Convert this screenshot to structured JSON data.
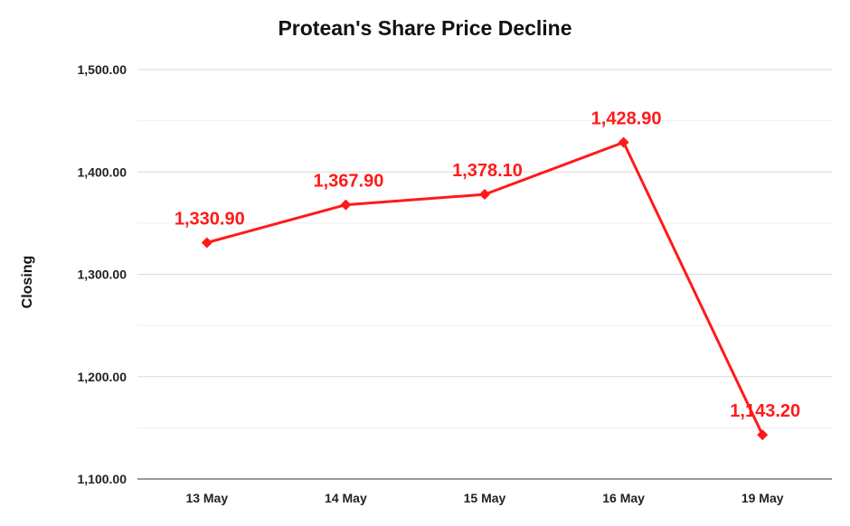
{
  "chart_data": {
    "type": "line",
    "title": "Protean's Share Price Decline",
    "xlabel": "",
    "ylabel": "Closing",
    "categories": [
      "13 May",
      "14 May",
      "15 May",
      "16 May",
      "19 May"
    ],
    "series": [
      {
        "values": [
          1330.9,
          1367.9,
          1378.1,
          1428.9,
          1143.2
        ]
      }
    ],
    "data_labels": [
      "1,330.90",
      "1,367.90",
      "1,378.10",
      "1,428.90",
      "1,143.20"
    ],
    "y_ticks": [
      1100,
      1200,
      1300,
      1400,
      1500
    ],
    "y_tick_labels": [
      "1,100.00",
      "1,200.00",
      "1,300.00",
      "1,400.00",
      "1,500.00"
    ],
    "ylim": [
      1100,
      1500
    ],
    "grid": true,
    "legend": "none",
    "colors": {
      "line": "#ff1a1a",
      "grid_major": "#d9d9d9",
      "grid_minor": "#eeeeee"
    }
  }
}
